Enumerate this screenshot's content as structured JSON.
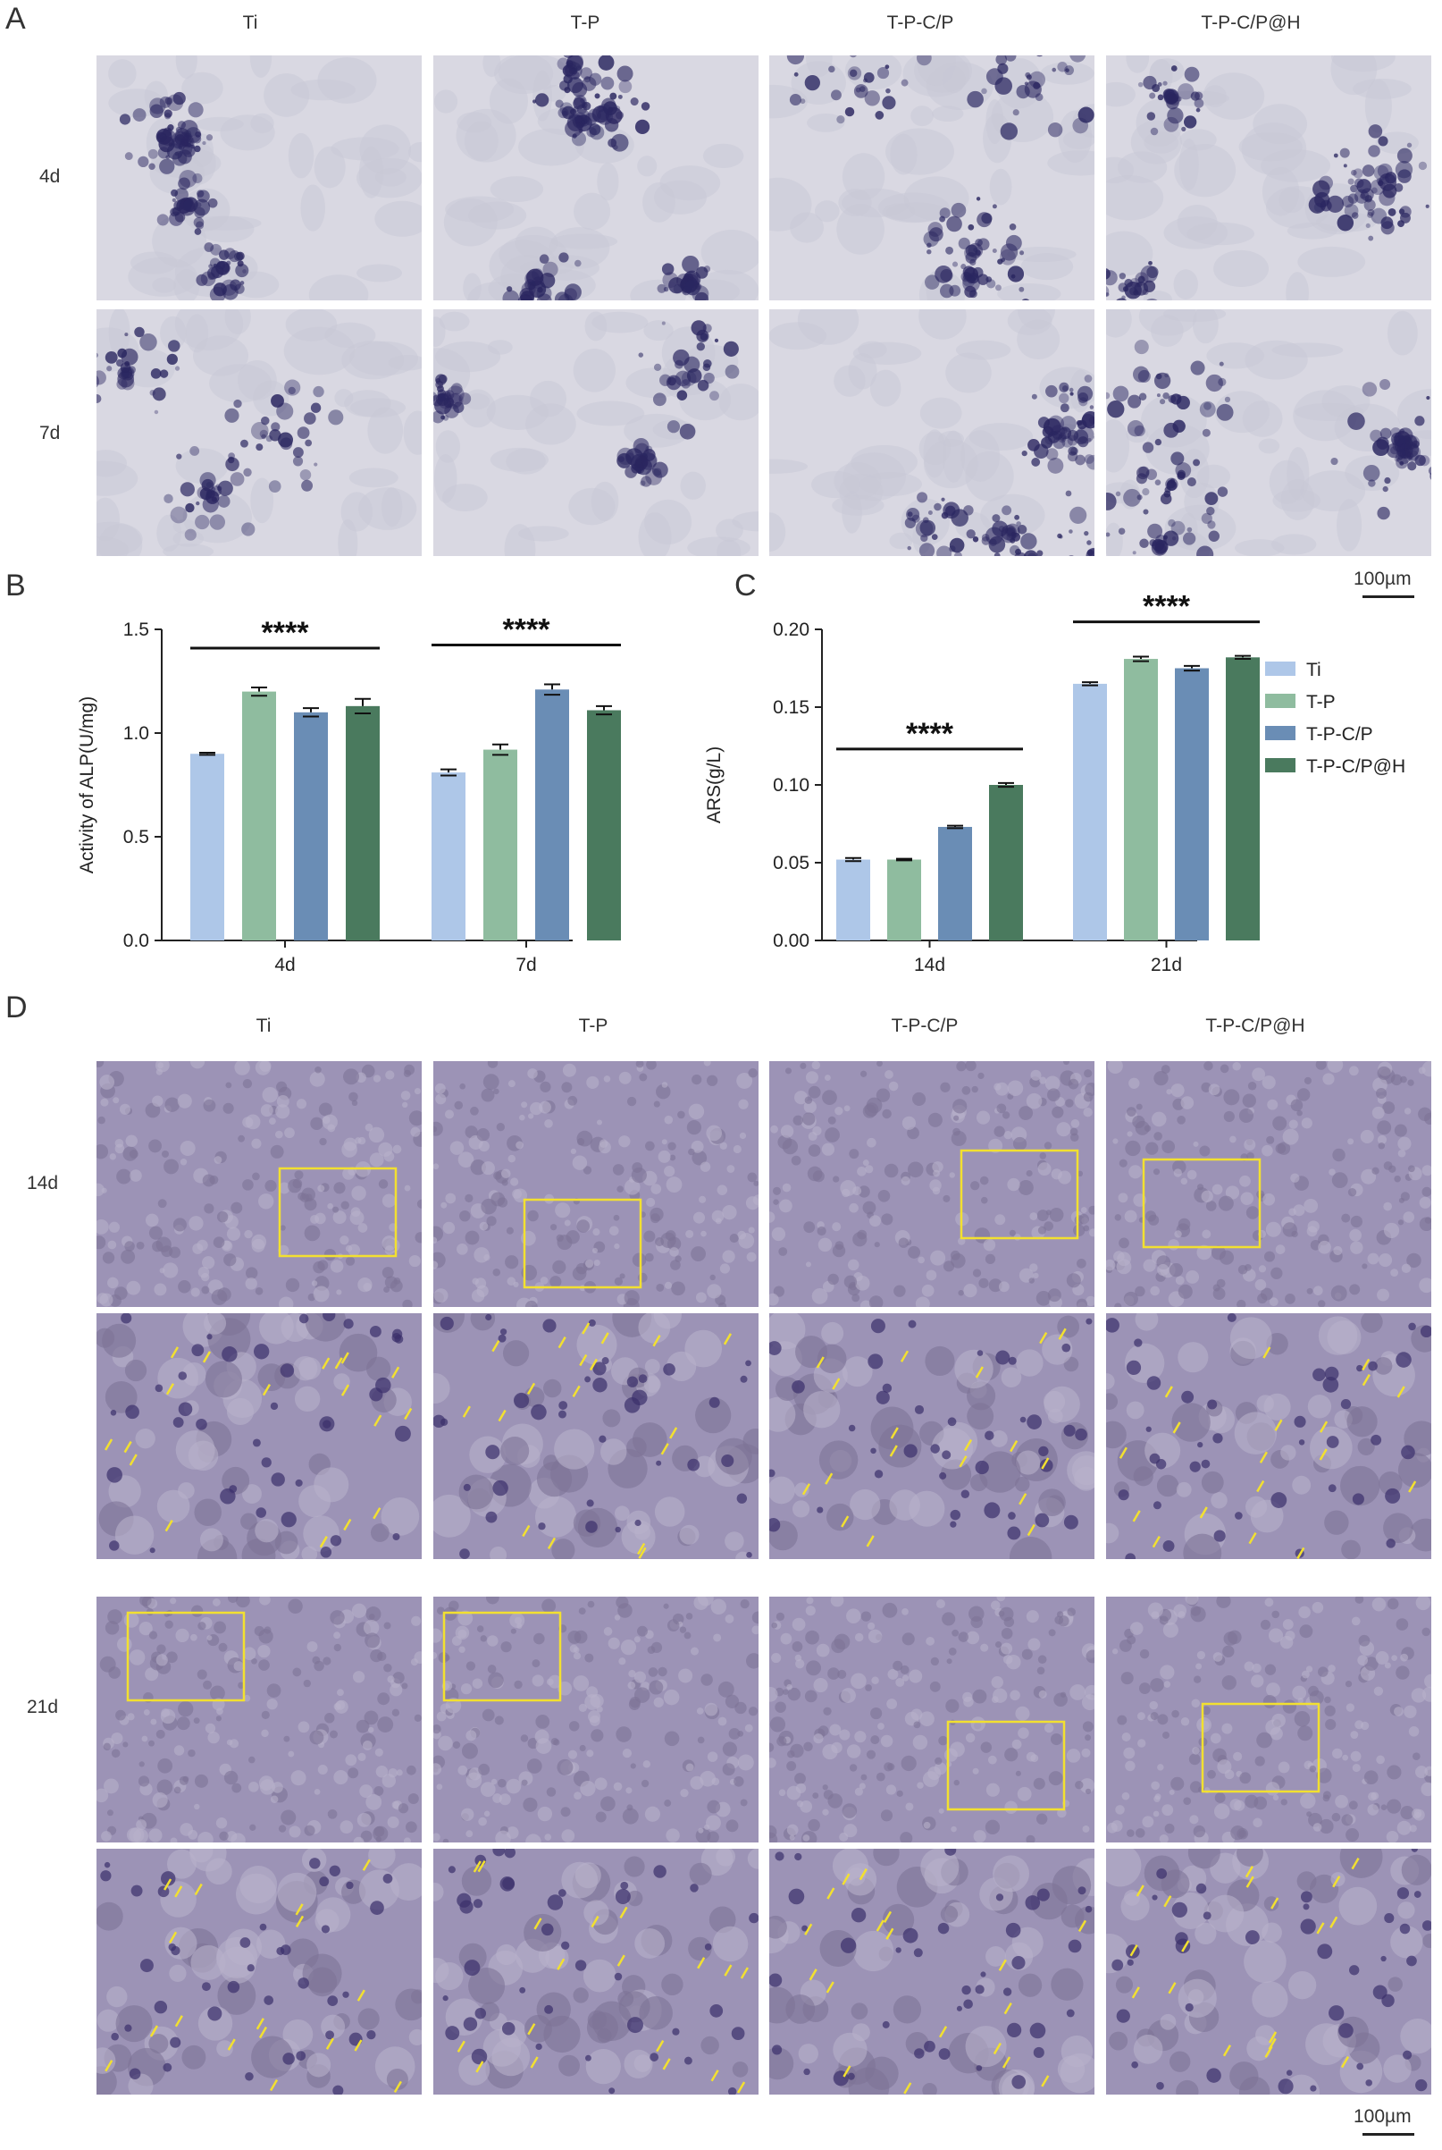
{
  "panels": {
    "a": "A",
    "b": "B",
    "c": "C",
    "d": "D"
  },
  "groups": [
    "Ti",
    "T-P",
    "T-P-C/P",
    "T-P-C/P@H"
  ],
  "panel_a": {
    "rows": [
      "4d",
      "7d"
    ],
    "scale_label": "100µm"
  },
  "panel_d": {
    "rows": [
      "14d",
      "21d"
    ],
    "scale_label": "100µm"
  },
  "colors": {
    "Ti": "#aec7e8",
    "T-P": "#8fbc9f",
    "T-P-C/P": "#6a8db5",
    "T-P-C/P@H": "#4a7a5e",
    "alp_stain": "#2a2660",
    "ars_bg": "#9c93b6",
    "zoom_box": "#f2e030"
  },
  "chart_data": [
    {
      "id": "B",
      "type": "bar",
      "categories": [
        "4d",
        "7d"
      ],
      "series": [
        {
          "name": "Ti",
          "values": [
            0.9,
            0.81
          ],
          "errors": [
            0.005,
            0.015
          ]
        },
        {
          "name": "T-P",
          "values": [
            1.2,
            0.92
          ],
          "errors": [
            0.02,
            0.025
          ]
        },
        {
          "name": "T-P-C/P",
          "values": [
            1.1,
            1.21
          ],
          "errors": [
            0.02,
            0.025
          ]
        },
        {
          "name": "T-P-C/P@H",
          "values": [
            1.13,
            1.11
          ],
          "errors": [
            0.035,
            0.02
          ]
        }
      ],
      "xlabel": "",
      "ylabel": "Activity of ALP(U/mg)",
      "ylim": [
        0,
        1.5
      ],
      "yticks": [
        "0.0",
        "0.5",
        "1.0",
        "1.5"
      ],
      "significance": [
        "****",
        "****"
      ],
      "legend": false
    },
    {
      "id": "C",
      "type": "bar",
      "categories": [
        "14d",
        "21d"
      ],
      "series": [
        {
          "name": "Ti",
          "values": [
            0.052,
            0.165
          ],
          "errors": [
            0.001,
            0.001
          ]
        },
        {
          "name": "T-P",
          "values": [
            0.052,
            0.181
          ],
          "errors": [
            0.0005,
            0.0015
          ]
        },
        {
          "name": "T-P-C/P",
          "values": [
            0.073,
            0.175
          ],
          "errors": [
            0.0008,
            0.0015
          ]
        },
        {
          "name": "T-P-C/P@H",
          "values": [
            0.1,
            0.182
          ],
          "errors": [
            0.0012,
            0.001
          ]
        }
      ],
      "xlabel": "",
      "ylabel": "ARS(g/L)",
      "ylim": [
        0,
        0.2
      ],
      "yticks": [
        "0.00",
        "0.05",
        "0.10",
        "0.15",
        "0.20"
      ],
      "significance": [
        "****",
        "****"
      ],
      "legend": "right"
    }
  ]
}
